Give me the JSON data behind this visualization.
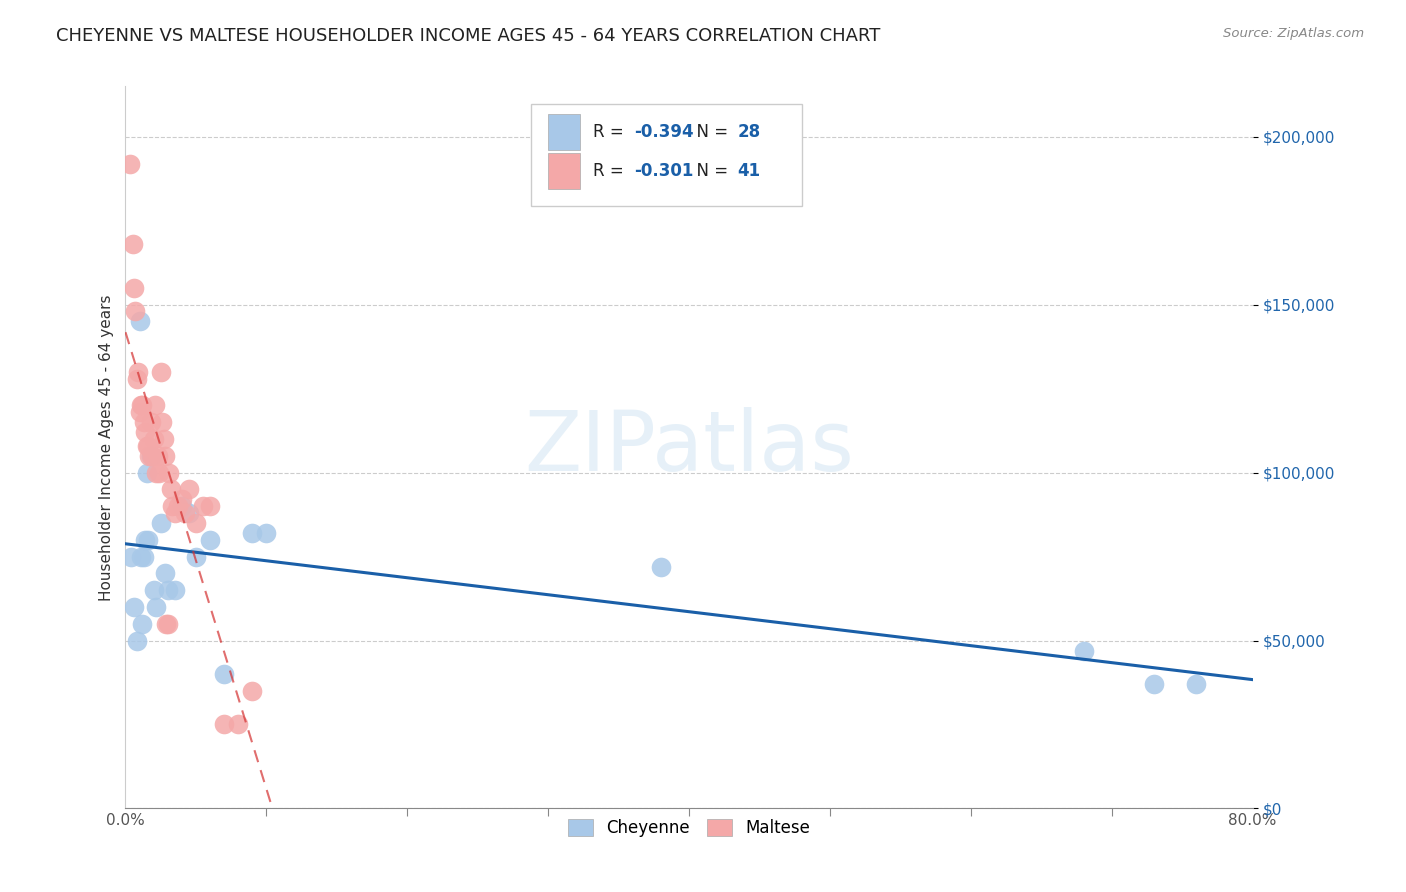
{
  "title": "CHEYENNE VS MALTESE HOUSEHOLDER INCOME AGES 45 - 64 YEARS CORRELATION CHART",
  "source": "Source: ZipAtlas.com",
  "ylabel": "Householder Income Ages 45 - 64 years",
  "cheyenne_R": -0.394,
  "cheyenne_N": 28,
  "maltese_R": -0.301,
  "maltese_N": 41,
  "cheyenne_color": "#a8c8e8",
  "maltese_color": "#f4a8a8",
  "cheyenne_line_color": "#1a5fa8",
  "maltese_line_color": "#d43030",
  "background_color": "#ffffff",
  "grid_color": "#cccccc",
  "ytick_labels": [
    "$0",
    "$50,000",
    "$100,000",
    "$150,000",
    "$200,000"
  ],
  "ytick_values": [
    0,
    50000,
    100000,
    150000,
    200000
  ],
  "ytick_color": "#2166ac",
  "xlim": [
    0.0,
    0.8
  ],
  "ylim": [
    0,
    215000
  ],
  "cheyenne_x": [
    0.004,
    0.006,
    0.008,
    0.01,
    0.011,
    0.012,
    0.013,
    0.014,
    0.015,
    0.016,
    0.018,
    0.02,
    0.022,
    0.025,
    0.028,
    0.03,
    0.035,
    0.04,
    0.045,
    0.05,
    0.06,
    0.07,
    0.09,
    0.1,
    0.38,
    0.68,
    0.73,
    0.76
  ],
  "cheyenne_y": [
    75000,
    60000,
    50000,
    145000,
    75000,
    55000,
    75000,
    80000,
    100000,
    80000,
    105000,
    65000,
    60000,
    85000,
    70000,
    65000,
    65000,
    90000,
    88000,
    75000,
    80000,
    40000,
    82000,
    82000,
    72000,
    47000,
    37000,
    37000
  ],
  "maltese_x": [
    0.003,
    0.005,
    0.006,
    0.007,
    0.008,
    0.009,
    0.01,
    0.011,
    0.012,
    0.013,
    0.014,
    0.015,
    0.016,
    0.017,
    0.018,
    0.019,
    0.02,
    0.021,
    0.022,
    0.023,
    0.024,
    0.025,
    0.026,
    0.027,
    0.028,
    0.029,
    0.03,
    0.031,
    0.032,
    0.033,
    0.035,
    0.037,
    0.04,
    0.042,
    0.045,
    0.05,
    0.055,
    0.06,
    0.07,
    0.08,
    0.09
  ],
  "maltese_y": [
    192000,
    168000,
    155000,
    148000,
    128000,
    130000,
    118000,
    120000,
    120000,
    115000,
    112000,
    108000,
    108000,
    105000,
    115000,
    105000,
    110000,
    120000,
    100000,
    105000,
    100000,
    130000,
    115000,
    110000,
    105000,
    55000,
    55000,
    100000,
    95000,
    90000,
    88000,
    90000,
    92000,
    88000,
    95000,
    85000,
    90000,
    90000,
    25000,
    25000,
    35000
  ],
  "watermark_text": "ZIPatlas",
  "title_fontsize": 13,
  "axis_label_fontsize": 11,
  "tick_fontsize": 11,
  "legend_fontsize": 12
}
